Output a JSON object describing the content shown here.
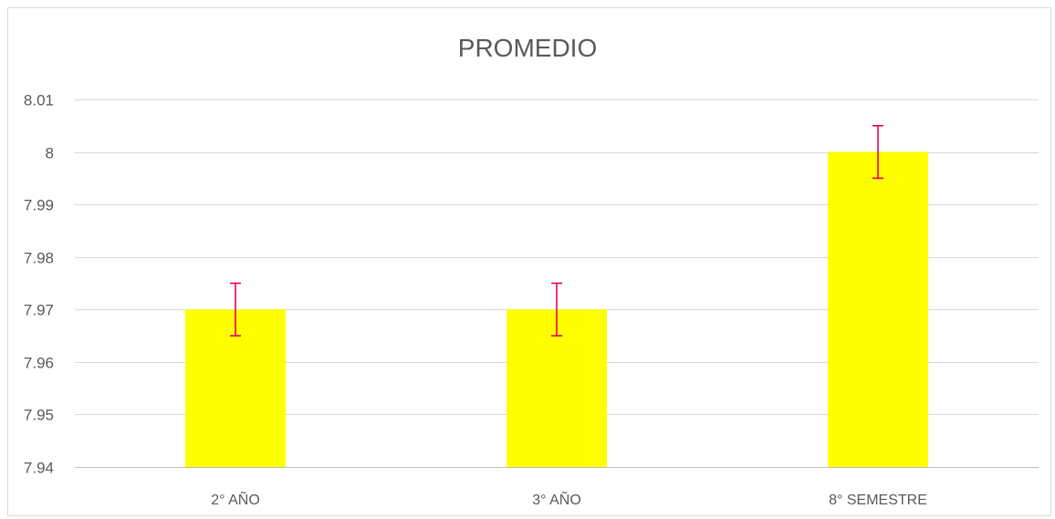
{
  "chart_data": {
    "type": "bar",
    "title": "PROMEDIO",
    "xlabel": "",
    "ylabel": "",
    "categories": [
      "2° AÑO",
      "3° AÑO",
      "8° SEMESTRE"
    ],
    "series": [
      {
        "values": [
          7.97,
          7.97,
          8.0
        ],
        "error": [
          0.005,
          0.005,
          0.005
        ]
      }
    ],
    "ylim": [
      7.94,
      8.01
    ],
    "yticks": [
      7.94,
      7.95,
      7.96,
      7.97,
      7.98,
      7.99,
      8,
      8.01
    ],
    "ytick_labels": [
      "7.94",
      "7.95",
      "7.96",
      "7.97",
      "7.98",
      "7.99",
      "8",
      "8.01"
    ],
    "grid": true,
    "legend": "none",
    "colors": {
      "bar": "#FFFF00",
      "error_bar": "#E8005A",
      "grid": "#d9d9d9",
      "axis": "#bfbfbf",
      "text": "#595959"
    }
  }
}
